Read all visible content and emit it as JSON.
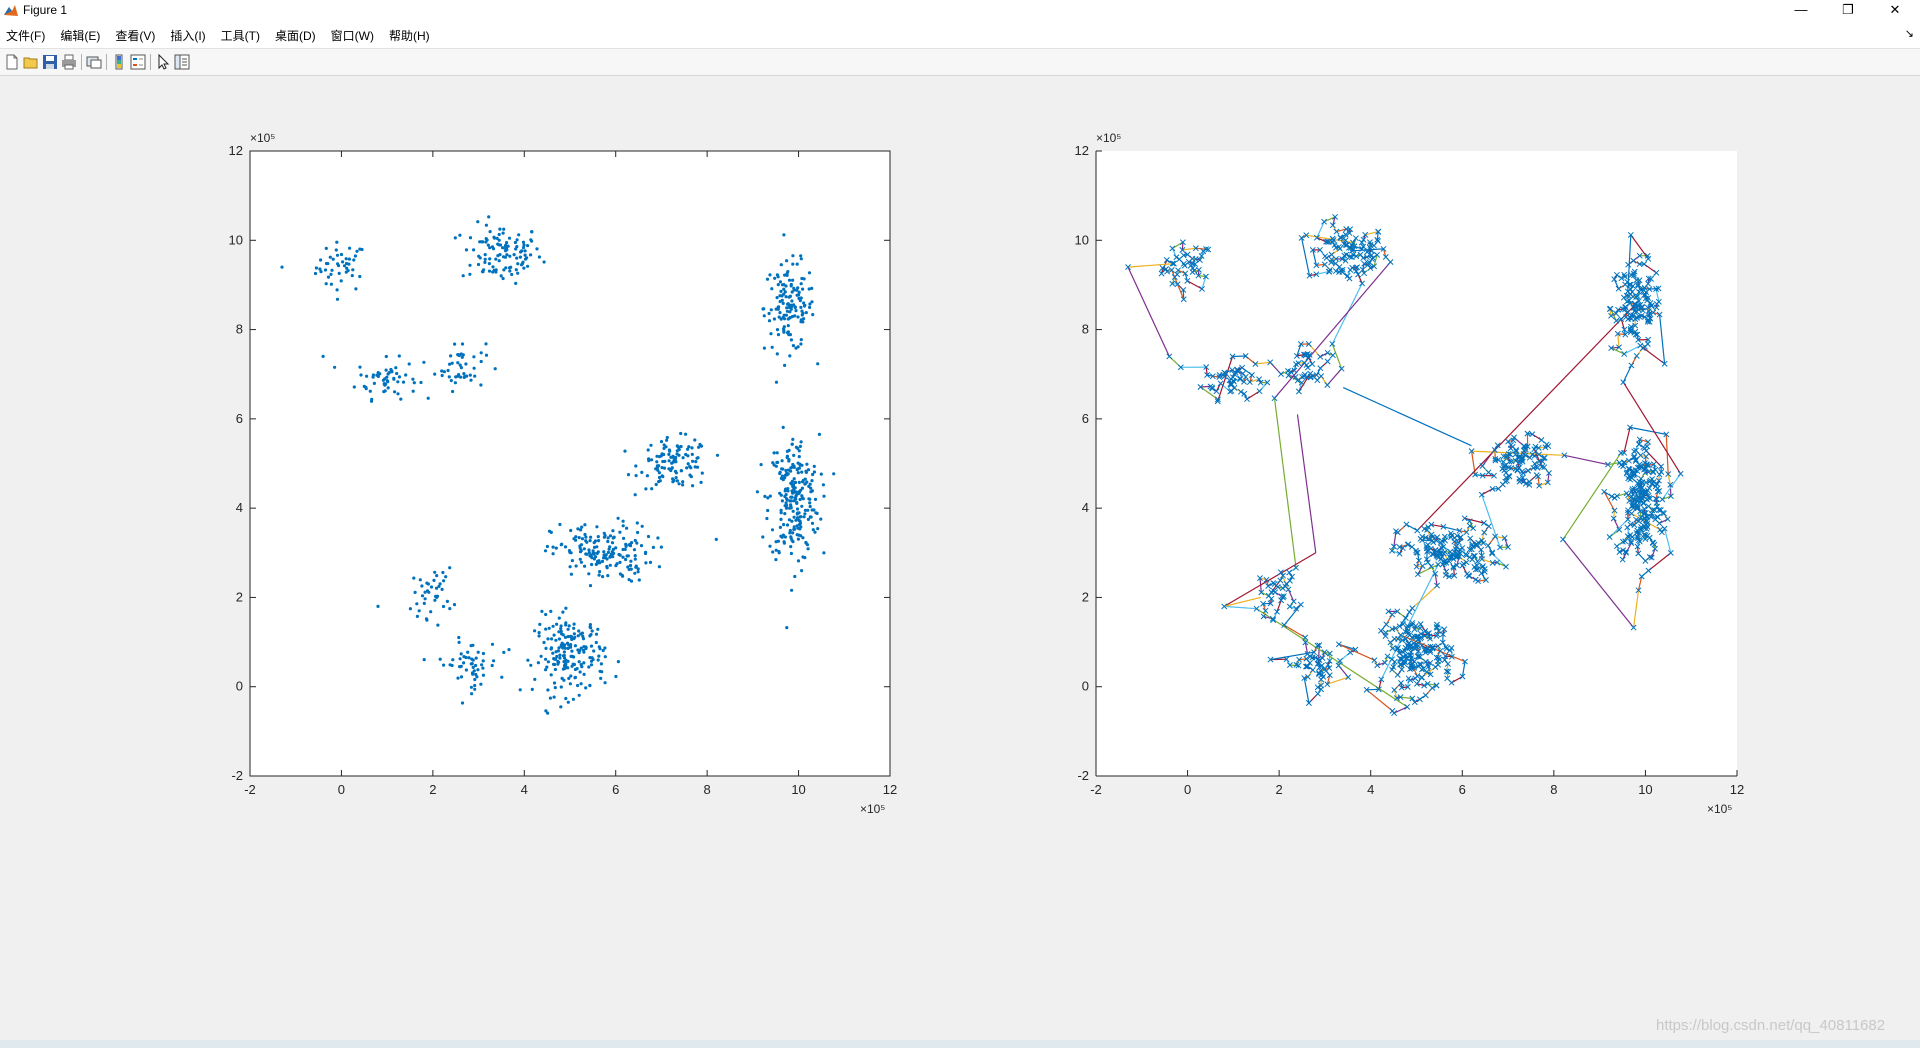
{
  "window": {
    "title": "Figure 1",
    "minimize_glyph": "—",
    "restore_glyph": "❐",
    "close_glyph": "✕"
  },
  "menubar": {
    "items": [
      "文件(F)",
      "编辑(E)",
      "查看(V)",
      "插入(I)",
      "工具(T)",
      "桌面(D)",
      "窗口(W)",
      "帮助(H)"
    ],
    "dock_glyph": "↘"
  },
  "toolbar": {
    "icons": [
      "new-figure-icon",
      "open-file-icon",
      "save-icon",
      "print-icon",
      "link-plot-icon",
      "colorbar-icon",
      "legend-icon",
      "edit-plot-arrow-icon",
      "property-inspector-icon"
    ]
  },
  "watermark": "https://blog.csdn.net/qq_40811682",
  "colors": {
    "scatter": "#0072BD",
    "path_palette": [
      "#0072BD",
      "#D95319",
      "#EDB120",
      "#7E2F8E",
      "#77AC30",
      "#4DBEEE",
      "#A2142F"
    ],
    "axis": "#262626"
  },
  "chart_data": [
    {
      "type": "scatter",
      "xlim": [
        -2,
        12
      ],
      "ylim": [
        -2,
        12
      ],
      "xticks": [
        "-2",
        "0",
        "2",
        "4",
        "6",
        "8",
        "10",
        "12"
      ],
      "yticks": [
        "-2",
        "0",
        "2",
        "4",
        "6",
        "8",
        "10",
        "12"
      ],
      "x_exponent_label": "×10⁵",
      "y_exponent_label": "×10⁵",
      "marker": "dot",
      "box": true,
      "clusters": [
        {
          "center": [
            0.0,
            9.4
          ],
          "spread": [
            0.5,
            0.5
          ],
          "n": 45
        },
        {
          "center": [
            3.5,
            9.7
          ],
          "spread": [
            0.8,
            0.6
          ],
          "n": 110
        },
        {
          "center": [
            1.0,
            6.9
          ],
          "spread": [
            0.6,
            0.4
          ],
          "n": 55
        },
        {
          "center": [
            2.6,
            7.2
          ],
          "spread": [
            0.5,
            0.5
          ],
          "n": 45
        },
        {
          "center": [
            9.8,
            8.5
          ],
          "spread": [
            0.5,
            0.9
          ],
          "n": 140
        },
        {
          "center": [
            7.3,
            5.0
          ],
          "spread": [
            0.7,
            0.5
          ],
          "n": 110
        },
        {
          "center": [
            9.9,
            4.2
          ],
          "spread": [
            0.5,
            1.3
          ],
          "n": 240
        },
        {
          "center": [
            5.7,
            3.0
          ],
          "spread": [
            1.0,
            0.6
          ],
          "n": 170
        },
        {
          "center": [
            2.0,
            2.1
          ],
          "spread": [
            0.4,
            0.5
          ],
          "n": 40
        },
        {
          "center": [
            2.8,
            0.5
          ],
          "spread": [
            0.6,
            0.5
          ],
          "n": 55
        },
        {
          "center": [
            5.0,
            0.7
          ],
          "spread": [
            0.7,
            0.8
          ],
          "n": 190
        }
      ],
      "outliers": [
        [
          -1.3,
          9.4
        ],
        [
          0.8,
          1.8
        ],
        [
          -0.4,
          7.4
        ],
        [
          8.2,
          3.3
        ]
      ]
    },
    {
      "type": "line",
      "xlim": [
        -2,
        12
      ],
      "ylim": [
        -2,
        12
      ],
      "xticks": [
        "-2",
        "0",
        "2",
        "4",
        "6",
        "8",
        "10",
        "12"
      ],
      "yticks": [
        "-2",
        "0",
        "2",
        "4",
        "6",
        "8",
        "10",
        "12"
      ],
      "x_exponent_label": "×10⁵",
      "y_exponent_label": "×10⁵",
      "marker": "x",
      "box": false,
      "description": "nearest-neighbour tour through the same points, segments drawn in cycling colors",
      "segment_color_cycle": [
        "#0072BD",
        "#D95319",
        "#EDB120",
        "#7E2F8E",
        "#77AC30",
        "#4DBEEE",
        "#A2142F"
      ],
      "long_edges": [
        [
          [
            3.4,
            6.7
          ],
          [
            6.2,
            5.4
          ]
        ],
        [
          [
            2.4,
            6.1
          ],
          [
            2.8,
            3.0
          ]
        ],
        [
          [
            2.8,
            3.0
          ],
          [
            0.8,
            1.8
          ]
        ],
        [
          [
            0.8,
            1.8
          ],
          [
            1.6,
            2.0
          ]
        ]
      ]
    }
  ]
}
